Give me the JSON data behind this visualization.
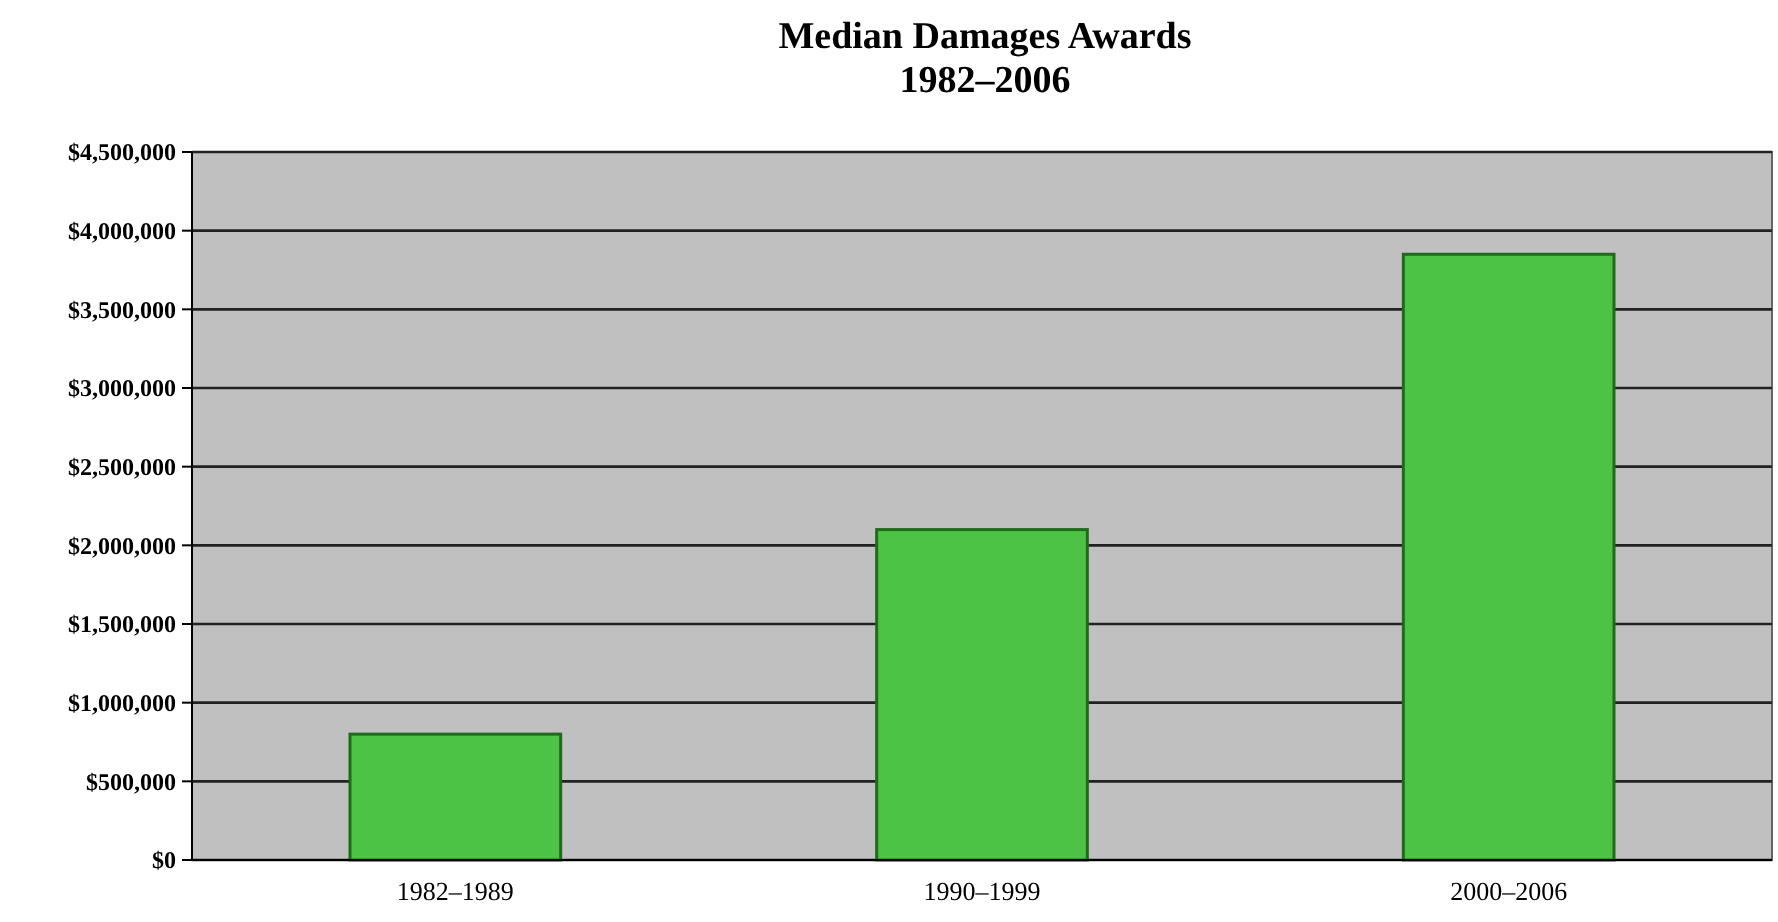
{
  "chart_data": {
    "type": "bar",
    "title": "Median Damages Awards",
    "subtitle": "1982–2006",
    "categories": [
      "1982–1989",
      "1990–1999",
      "2000–2006"
    ],
    "values": [
      800000,
      2100000,
      3850000
    ],
    "color": "#4cc344",
    "ylim": [
      0,
      4500000
    ],
    "yticks": [
      {
        "value": 0,
        "label": "$0"
      },
      {
        "value": 500000,
        "label": "$500,000"
      },
      {
        "value": 1000000,
        "label": "$1,000,000"
      },
      {
        "value": 1500000,
        "label": "$1,500,000"
      },
      {
        "value": 2000000,
        "label": "$2,000,000"
      },
      {
        "value": 2500000,
        "label": "$2,500,000"
      },
      {
        "value": 3000000,
        "label": "$3,000,000"
      },
      {
        "value": 3500000,
        "label": "$3,500,000"
      },
      {
        "value": 4000000,
        "label": "$4,000,000"
      },
      {
        "value": 4500000,
        "label": "$4,500,000"
      }
    ],
    "grid": "y"
  }
}
